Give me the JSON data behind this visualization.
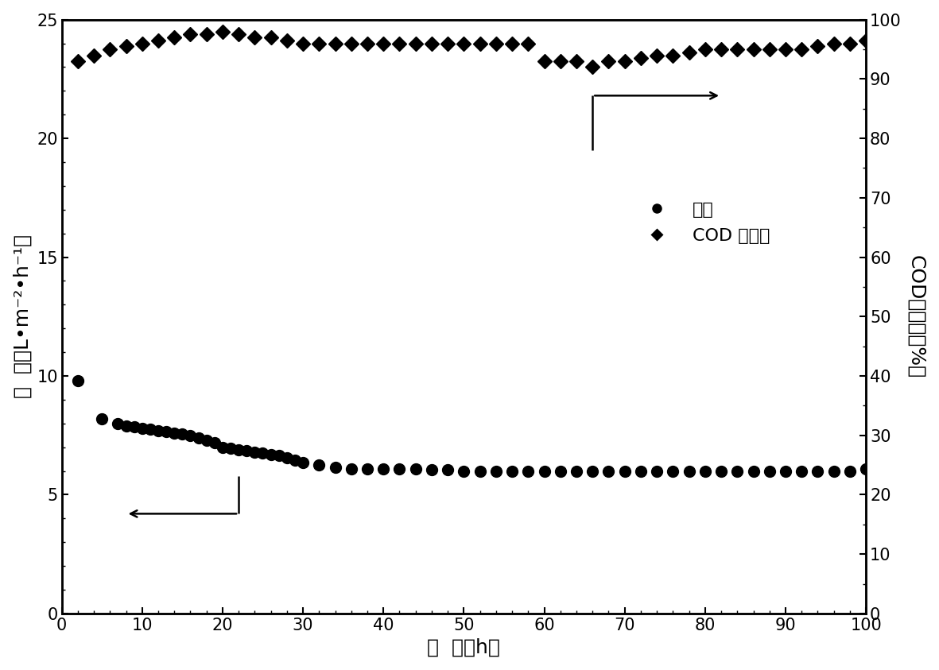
{
  "flux_x": [
    2,
    5,
    7,
    8,
    9,
    10,
    11,
    12,
    13,
    14,
    15,
    16,
    17,
    18,
    19,
    20,
    21,
    22,
    23,
    24,
    25,
    26,
    27,
    28,
    29,
    30,
    32,
    34,
    36,
    38,
    40,
    42,
    44,
    46,
    48,
    50,
    52,
    54,
    56,
    58,
    60,
    62,
    64,
    66,
    68,
    70,
    72,
    74,
    76,
    78,
    80,
    82,
    84,
    86,
    88,
    90,
    92,
    94,
    96,
    98,
    100
  ],
  "flux_y": [
    9.8,
    8.2,
    8.0,
    7.9,
    7.85,
    7.8,
    7.75,
    7.7,
    7.65,
    7.6,
    7.55,
    7.5,
    7.4,
    7.3,
    7.2,
    7.0,
    6.95,
    6.9,
    6.85,
    6.8,
    6.75,
    6.7,
    6.65,
    6.55,
    6.45,
    6.35,
    6.25,
    6.15,
    6.1,
    6.1,
    6.1,
    6.1,
    6.1,
    6.05,
    6.05,
    6.0,
    6.0,
    6.0,
    6.0,
    6.0,
    6.0,
    6.0,
    6.0,
    6.0,
    6.0,
    6.0,
    6.0,
    6.0,
    6.0,
    6.0,
    6.0,
    6.0,
    6.0,
    6.0,
    6.0,
    6.0,
    6.0,
    6.0,
    6.0,
    6.0,
    6.1
  ],
  "cod_x": [
    2,
    4,
    6,
    8,
    10,
    12,
    14,
    16,
    18,
    20,
    22,
    24,
    26,
    28,
    30,
    32,
    34,
    36,
    38,
    40,
    42,
    44,
    46,
    48,
    50,
    52,
    54,
    56,
    58,
    60,
    62,
    64,
    66,
    68,
    70,
    72,
    74,
    76,
    78,
    80,
    82,
    84,
    86,
    88,
    90,
    92,
    94,
    96,
    98,
    100
  ],
  "cod_y": [
    93.0,
    94.0,
    95.0,
    95.5,
    96.0,
    96.5,
    97.0,
    97.5,
    97.5,
    98.0,
    97.5,
    97.0,
    97.0,
    96.5,
    96.0,
    96.0,
    96.0,
    96.0,
    96.0,
    96.0,
    96.0,
    96.0,
    96.0,
    96.0,
    96.0,
    96.0,
    96.0,
    96.0,
    96.0,
    93.0,
    93.0,
    93.0,
    92.0,
    93.0,
    93.0,
    93.5,
    94.0,
    94.0,
    94.5,
    95.0,
    95.0,
    95.0,
    95.0,
    95.0,
    95.0,
    95.0,
    95.5,
    96.0,
    96.0,
    96.5
  ],
  "xlabel": "时  间（h）",
  "ylabel_left": "通  量（L•m⁻²•h⁻¹）",
  "ylabel_right": "COD去除率（%）",
  "legend_flux": "通量",
  "legend_cod": "COD 去除率",
  "xlim": [
    0,
    100
  ],
  "ylim_left": [
    0,
    25
  ],
  "ylim_right": [
    0,
    100
  ],
  "xticks": [
    0,
    10,
    20,
    30,
    40,
    50,
    60,
    70,
    80,
    90,
    100
  ],
  "yticks_left": [
    0,
    5,
    10,
    15,
    20,
    25
  ],
  "yticks_right": [
    0,
    10,
    20,
    30,
    40,
    50,
    60,
    70,
    80,
    90,
    100
  ],
  "color": "#000000",
  "background_color": "#ffffff",
  "marker_flux": "o",
  "marker_cod": "D",
  "markersize_flux": 10,
  "markersize_cod": 9,
  "fontsize_labels": 18,
  "fontsize_ticks": 15,
  "fontsize_legend": 16
}
